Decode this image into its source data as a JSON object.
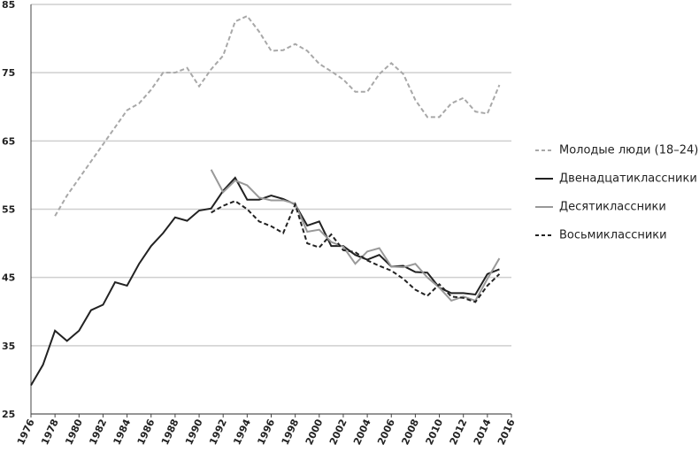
{
  "chart_data": {
    "type": "line",
    "x": [
      1976,
      1977,
      1978,
      1979,
      1980,
      1981,
      1982,
      1983,
      1984,
      1985,
      1986,
      1987,
      1988,
      1989,
      1990,
      1991,
      1992,
      1993,
      1994,
      1995,
      1996,
      1997,
      1998,
      1999,
      2000,
      2001,
      2002,
      2003,
      2004,
      2005,
      2006,
      2007,
      2008,
      2009,
      2010,
      2011,
      2012,
      2013,
      2014,
      2015
    ],
    "series": [
      {
        "name": "Молодые люди (18–24)",
        "color": "#a8a8a8",
        "dashed": true,
        "values": [
          null,
          null,
          54,
          57,
          59.5,
          62,
          64.5,
          67,
          69.5,
          70.5,
          72.5,
          75,
          75,
          75.7,
          73,
          75.5,
          77.5,
          82.5,
          83.3,
          81,
          78.2,
          78.3,
          79.2,
          78.2,
          76.3,
          75.2,
          74,
          72.2,
          72.2,
          74.8,
          76.4,
          74.8,
          71,
          68.5,
          68.5,
          70.5,
          71.3,
          69.3,
          69,
          73.2
        ]
      },
      {
        "name": "Двенадцатиклассники",
        "color": "#222222",
        "dashed": false,
        "values": [
          29.2,
          32.2,
          37.2,
          35.7,
          37.2,
          40.2,
          41,
          44.3,
          43.8,
          47,
          49.6,
          51.5,
          53.8,
          53.3,
          54.8,
          55.1,
          57.7,
          59.6,
          56.4,
          56.4,
          57,
          56.5,
          55.7,
          52.6,
          53.2,
          49.6,
          49.6,
          48.3,
          47.6,
          48.3,
          46.6,
          46.7,
          45.8,
          45.7,
          43.5,
          42.7,
          42.7,
          42.5,
          45.5,
          46.2
        ]
      },
      {
        "name": "Десятиклассники",
        "color": "#999999",
        "dashed": false,
        "values": [
          null,
          null,
          null,
          null,
          null,
          null,
          null,
          null,
          null,
          null,
          null,
          null,
          null,
          null,
          null,
          60.8,
          57.5,
          59.2,
          58.5,
          56.7,
          56.3,
          56.3,
          55.8,
          51.7,
          52,
          50.2,
          49.5,
          47,
          48.8,
          49.3,
          46.6,
          46.5,
          47,
          45,
          43.5,
          41.6,
          42.2,
          41.6,
          44.8,
          47.8
        ]
      },
      {
        "name": "Восьмиклассники",
        "color": "#222222",
        "dashed": true,
        "values": [
          null,
          null,
          null,
          null,
          null,
          null,
          null,
          null,
          null,
          null,
          null,
          null,
          null,
          null,
          null,
          54.5,
          55.5,
          56.2,
          55,
          53.2,
          52.5,
          51.5,
          55.7,
          50,
          49.4,
          51.3,
          49,
          48.7,
          47.5,
          46.7,
          46,
          44.8,
          43.2,
          42.3,
          44,
          42.2,
          42,
          41.4,
          43.8,
          45.5
        ]
      }
    ],
    "xlim": [
      1976,
      2016
    ],
    "xticks": [
      1976,
      1978,
      1980,
      1982,
      1984,
      1986,
      1988,
      1990,
      1992,
      1994,
      1996,
      1998,
      2000,
      2002,
      2004,
      2006,
      2008,
      2010,
      2012,
      2014,
      2016
    ],
    "ylim": [
      25,
      85
    ],
    "yticks": [
      25,
      35,
      45,
      55,
      65,
      75,
      85
    ],
    "grid": true
  }
}
